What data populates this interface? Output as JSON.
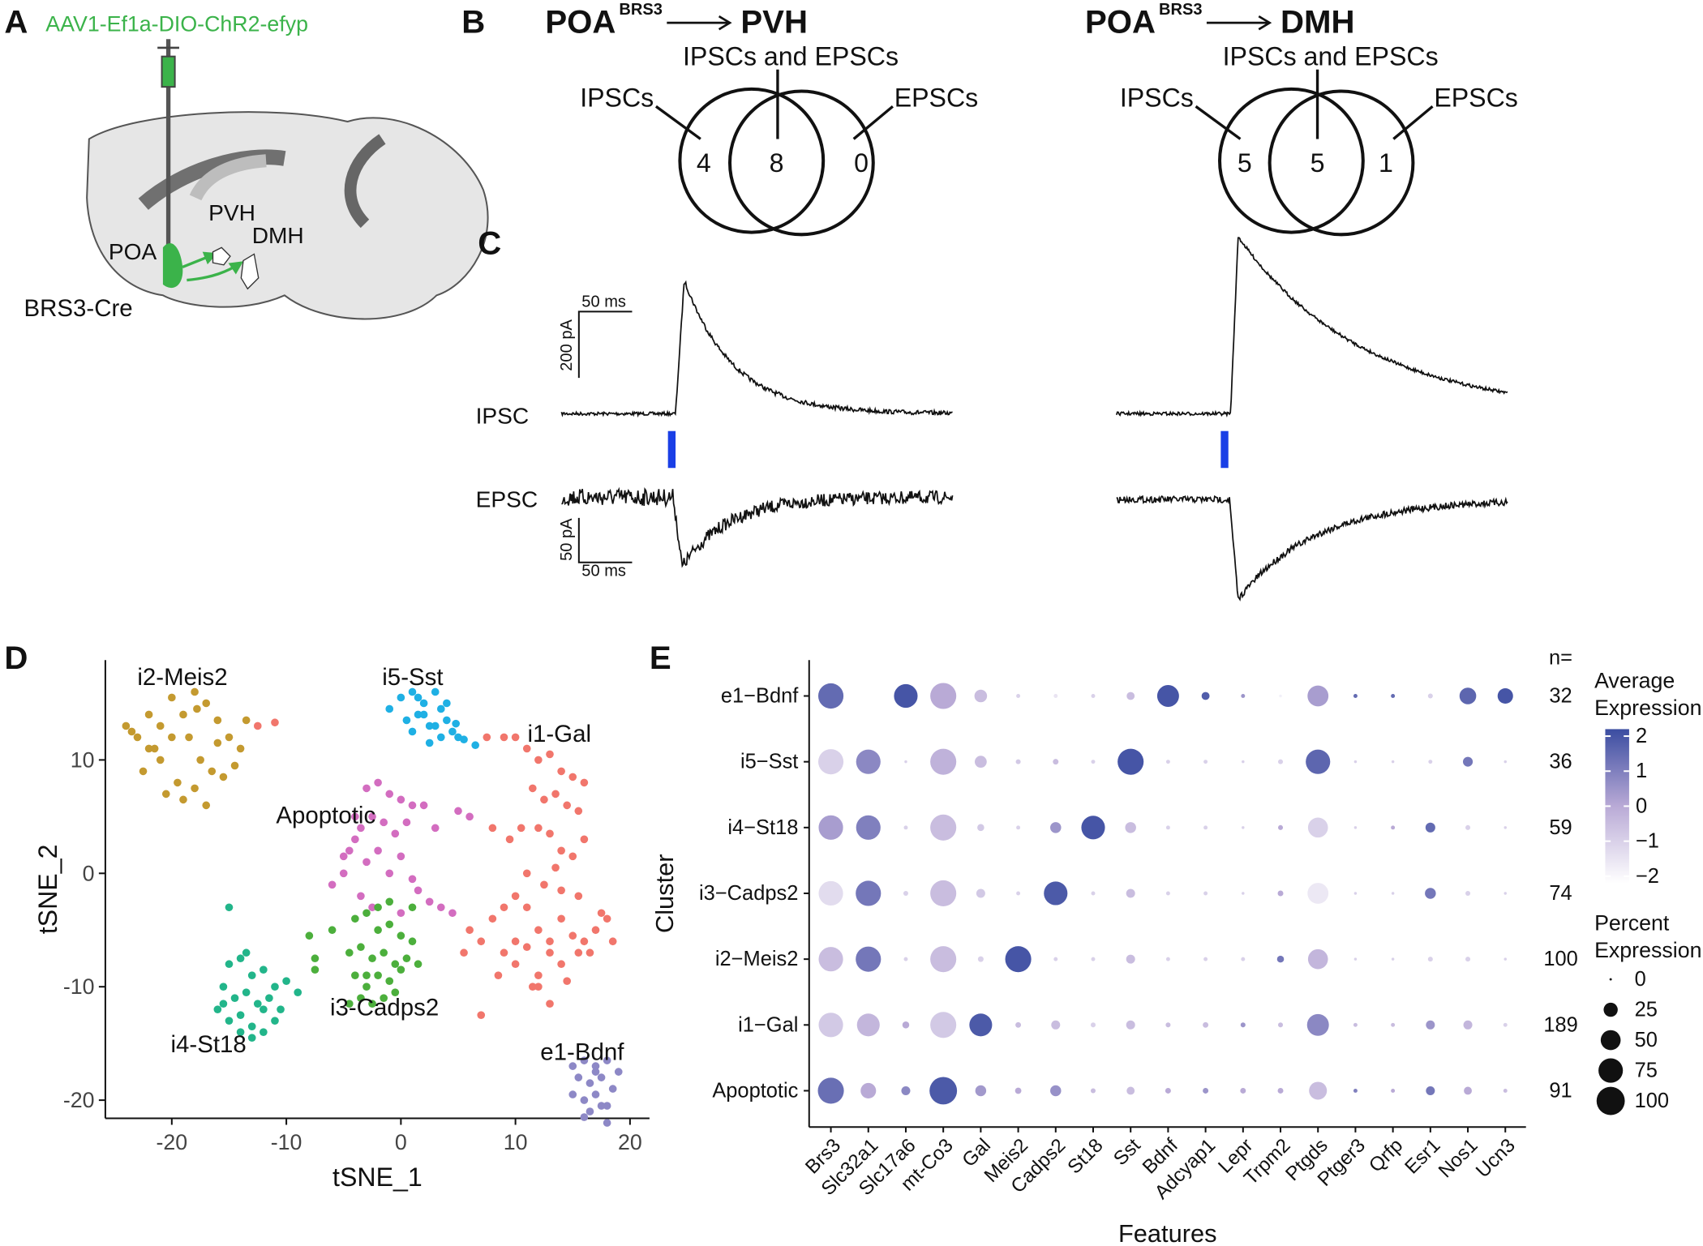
{
  "panel_a": {
    "letter": "A",
    "virus": "AAV1-Ef1a-DIO-ChR2-efyp",
    "pvh": "PVH",
    "dmh": "DMH",
    "poa": "POA",
    "mouse": "BRS3-Cre"
  },
  "panel_b": {
    "letter": "B",
    "pathways": [
      {
        "source": "POA",
        "superscript": "BRS3",
        "target": "PVH",
        "ipsc_label": "IPSCs",
        "both_label": "IPSCs and EPSCs",
        "epsc_label": "EPSCs",
        "counts": [
          4,
          8,
          0
        ]
      },
      {
        "source": "POA",
        "superscript": "BRS3",
        "target": "DMH",
        "ipsc_label": "IPSCs",
        "both_label": "IPSCs and EPSCs",
        "epsc_label": "EPSCs",
        "counts": [
          5,
          5,
          1
        ]
      }
    ]
  },
  "panel_c": {
    "letter": "C",
    "ipsc_label": "IPSC",
    "epsc_label": "EPSC",
    "ipsc_scale": {
      "time": "50 ms",
      "current": "200 pA"
    },
    "epsc_scale": {
      "current": "50 pA",
      "time": "50 ms"
    }
  },
  "chart_data": [
    {
      "type": "scatter",
      "panel": "D",
      "x_label": "tSNE_1",
      "y_label": "tSNE_2",
      "xlim": [
        -25.8,
        21.7
      ],
      "ylim": [
        -21.6,
        18.8
      ],
      "xticks": [
        -20,
        -10,
        0,
        10,
        20
      ],
      "yticks": [
        -20,
        -10,
        0,
        10
      ],
      "series": [
        {
          "name": "i2-Meis2",
          "color": "#c49a30",
          "x": [
            -24,
            -23,
            -22,
            -21.5,
            -20,
            -19,
            -18,
            -17,
            -16,
            -15,
            -14,
            -13.5,
            -22.5,
            -21,
            -19.5,
            -18.5,
            -17.5,
            -16.5,
            -15.5,
            -20.5,
            -19,
            -17,
            -22,
            -18,
            -16,
            -14.5,
            -21,
            -20,
            -23.5,
            -17.8
          ],
          "values": [
            13,
            12,
            14,
            11,
            15.5,
            14,
            16,
            15,
            13.5,
            12,
            11,
            13.5,
            9,
            10,
            8,
            12,
            10,
            9,
            8.5,
            7,
            6.5,
            6,
            11,
            7.5,
            11.5,
            9.5,
            13,
            12,
            12.5,
            14.5
          ]
        },
        {
          "name": "i5-Sst",
          "color": "#1fb0e4",
          "x": [
            -1,
            0,
            1,
            1.5,
            2,
            2.5,
            3,
            3.5,
            4,
            4.5,
            5,
            0.5,
            1,
            2,
            3,
            4,
            2.5,
            3.5,
            1.5,
            5.5,
            6.5,
            4.8
          ],
          "values": [
            14.5,
            15.5,
            16,
            14,
            15,
            13,
            16,
            14.5,
            13.5,
            12.5,
            12,
            13.5,
            12.5,
            14,
            13,
            15,
            11.5,
            12,
            15.5,
            11.8,
            11.3,
            13.2
          ]
        },
        {
          "name": "i1-Gal",
          "color": "#f1766c",
          "x": [
            -11,
            -12.5,
            7.5,
            9,
            10,
            11,
            12,
            13,
            14,
            15,
            16,
            11.5,
            12.5,
            13.5,
            14.5,
            15.5,
            10.5,
            12,
            13,
            14,
            15,
            16,
            11,
            12.5,
            13.5,
            14,
            15.5,
            8,
            9.5,
            10,
            11,
            12,
            13,
            14,
            9,
            8.5,
            10,
            11.5,
            13,
            14.5,
            15.5,
            6,
            5.5,
            7,
            8,
            9,
            10,
            11,
            12,
            13,
            14,
            16,
            17,
            18,
            18.5,
            17.5,
            16.5,
            15,
            12,
            7
          ],
          "values": [
            13.3,
            13,
            12,
            12,
            12,
            11,
            10,
            10.5,
            9,
            8.5,
            8,
            7.5,
            6.5,
            7,
            6,
            5.5,
            4,
            4,
            3.5,
            2,
            1.5,
            3,
            0,
            -1,
            0.5,
            -1.5,
            -2,
            4,
            3,
            -2,
            -3,
            -5,
            -6,
            -4,
            -7,
            -9,
            -8,
            -10,
            -11.5,
            -9.5,
            -7,
            -5,
            -7,
            -6,
            -4,
            -3,
            -6,
            -6.5,
            -9,
            -7,
            -8,
            -6,
            -5,
            -4,
            -6,
            -3.5,
            -7,
            -5.5,
            -10,
            -12.5
          ]
        },
        {
          "name": "Apoptotic",
          "color": "#d36dc0",
          "x": [
            -3,
            -2,
            -1,
            0,
            1,
            2,
            -4,
            -3.5,
            -2.5,
            -1.5,
            -0.5,
            0.5,
            -5,
            -4.5,
            -3,
            -2,
            -1,
            0,
            1,
            -6,
            -5,
            -3.5,
            2.5,
            3.5,
            4.5,
            5,
            6,
            3,
            -2.5,
            0,
            1.5,
            -4
          ],
          "values": [
            7.5,
            8,
            7,
            6.5,
            6,
            6,
            5,
            4,
            5,
            4.5,
            3.5,
            4.5,
            1.5,
            2,
            1,
            2,
            0,
            1.5,
            -0.5,
            -1,
            0,
            -2,
            -2.5,
            -3,
            -3.5,
            5.5,
            5,
            4,
            -3,
            -3.5,
            -1.5,
            3
          ]
        },
        {
          "name": "i3-Cadps2",
          "color": "#4caf3c",
          "x": [
            -4,
            -3,
            -2,
            -1,
            0,
            1,
            -4.5,
            -3.5,
            -2.5,
            -1.5,
            -0.5,
            0.5,
            1.5,
            -4,
            -3,
            -2,
            -1,
            0,
            -3.5,
            -2.5,
            -1.5,
            -0.5,
            -4.5,
            -2,
            -1,
            -8,
            -7.5,
            -7.5,
            -6,
            -3,
            1
          ],
          "values": [
            -4,
            -3.5,
            -5,
            -4.5,
            -5.5,
            -6,
            -7,
            -6.5,
            -7.5,
            -7,
            -8,
            -7.5,
            -8,
            -9,
            -10,
            -9,
            -9.5,
            -8.5,
            -11,
            -11.5,
            -11,
            -10.5,
            -11.5,
            -3,
            -2.5,
            -5.5,
            -7.5,
            -8.5,
            -5,
            -9,
            -3
          ]
        },
        {
          "name": "i4-St18",
          "color": "#22b58a",
          "x": [
            -15,
            -14,
            -13,
            -12,
            -11,
            -10,
            -9,
            -15.5,
            -14.5,
            -13.5,
            -12.5,
            -11.5,
            -10.5,
            -16,
            -15,
            -14,
            -13,
            -12,
            -11,
            -14,
            -13,
            -12,
            -15.5,
            -13.5,
            -15
          ],
          "values": [
            -8,
            -7.5,
            -9,
            -8.5,
            -10,
            -9.5,
            -10.5,
            -10,
            -11,
            -10.5,
            -11.5,
            -11,
            -12,
            -12,
            -13,
            -12.5,
            -13.5,
            -12,
            -13,
            -14,
            -14.5,
            -14,
            -11.5,
            -7,
            -3
          ]
        },
        {
          "name": "e1-Bdnf",
          "color": "#8d88c6",
          "x": [
            15,
            16,
            17,
            18,
            19,
            15.5,
            16.5,
            17.5,
            18.5,
            15,
            16,
            17,
            18,
            16.5,
            17.5,
            18,
            16,
            17
          ],
          "values": [
            -17,
            -16.5,
            -17,
            -16.5,
            -17.5,
            -18,
            -18.5,
            -18,
            -19,
            -19.5,
            -20,
            -19.5,
            -20.5,
            -21,
            -20.5,
            -22,
            -21.5,
            -17.5
          ]
        }
      ]
    },
    {
      "type": "dotplot",
      "panel": "E",
      "x_label": "Features",
      "y_label": "Cluster",
      "features": [
        "Brs3",
        "Slc32a1",
        "Slc17a6",
        "mt-Co3",
        "Gal",
        "Meis2",
        "Cadps2",
        "St18",
        "Sst",
        "Bdnf",
        "Adcyap1",
        "Lepr",
        "Trpm2",
        "Ptgds",
        "Ptger3",
        "Qrfp",
        "Esr1",
        "Nos1",
        "Ucn3"
      ],
      "clusters": [
        "e1−Bdnf",
        "i5−Sst",
        "i4−St18",
        "i3−Cadps2",
        "i2−Meis2",
        "i1−Gal",
        "Apoptotic"
      ],
      "expression": [
        [
          1.5,
          null,
          2,
          0,
          -0.5,
          -1,
          -1.5,
          -1,
          -0.5,
          2,
          1.8,
          0.5,
          -1.8,
          0.3,
          1.5,
          1.5,
          -1,
          1.6,
          2
        ],
        [
          -1,
          0.8,
          -1,
          -0.2,
          -0.5,
          -0.8,
          -0.5,
          -1,
          2,
          -1,
          -1,
          -1,
          -1,
          1.6,
          -1,
          -1,
          -1,
          1.2,
          -1
        ],
        [
          0.3,
          1,
          -1,
          -0.5,
          -0.8,
          -1,
          0.5,
          2,
          -0.5,
          -1,
          -1,
          -1,
          0,
          -1,
          -1,
          0,
          1.5,
          -1,
          -1
        ],
        [
          -1.3,
          1.2,
          -1,
          -0.5,
          -0.8,
          -1,
          1.9,
          -1,
          -0.5,
          -1,
          -1,
          -1,
          0,
          -1.6,
          -1,
          -1,
          1.2,
          -1,
          -1
        ],
        [
          -0.5,
          1.2,
          -1,
          -0.5,
          -1,
          2,
          -1,
          -1,
          -0.5,
          -1,
          -1,
          -1,
          1.2,
          -0.3,
          -1,
          -1,
          -1,
          -1,
          -1
        ],
        [
          -0.8,
          -0.3,
          0,
          -0.8,
          1.9,
          -0.5,
          -0.5,
          -1,
          -0.5,
          -0.5,
          -0.5,
          0.5,
          -0.5,
          0.8,
          -0.5,
          -0.5,
          0.5,
          -0.3,
          -1
        ],
        [
          1.4,
          0,
          0.8,
          1.9,
          0.4,
          0,
          0.6,
          -0.5,
          -0.5,
          0,
          0.5,
          0,
          0,
          -0.5,
          1,
          0,
          1.2,
          0,
          -0.5
        ]
      ],
      "percent": [
        [
          80,
          null,
          70,
          85,
          20,
          2,
          2,
          2,
          8,
          60,
          8,
          2,
          1,
          55,
          2,
          2,
          3,
          35,
          30
        ],
        [
          80,
          75,
          1,
          85,
          18,
          3,
          4,
          2,
          85,
          2,
          2,
          1,
          3,
          75,
          1,
          1,
          2,
          12,
          1
        ],
        [
          75,
          75,
          2,
          85,
          6,
          2,
          15,
          70,
          15,
          2,
          2,
          1,
          3,
          50,
          1,
          2,
          12,
          3,
          1
        ],
        [
          75,
          80,
          3,
          85,
          10,
          2,
          70,
          2,
          10,
          2,
          2,
          1,
          4,
          55,
          1,
          1,
          15,
          3,
          1
        ],
        [
          75,
          80,
          2,
          85,
          4,
          85,
          2,
          2,
          10,
          2,
          2,
          2,
          6,
          50,
          1,
          1,
          3,
          3,
          1
        ],
        [
          75,
          65,
          6,
          85,
          65,
          4,
          10,
          3,
          10,
          3,
          4,
          3,
          3,
          60,
          2,
          2,
          10,
          10,
          2
        ],
        [
          85,
          30,
          10,
          95,
          15,
          5,
          15,
          3,
          8,
          4,
          4,
          4,
          4,
          40,
          2,
          2,
          10,
          8,
          2
        ]
      ],
      "n_label": "n=",
      "n": [
        32,
        36,
        59,
        74,
        100,
        189,
        91
      ],
      "color_title": [
        "Average",
        "Expression"
      ],
      "clim": [
        -2.2,
        2.2
      ],
      "color_low": "#ffffff",
      "color_mid": "#b9aad6",
      "color_high": "#3b4da1",
      "colorbar_ticks": [
        2,
        1,
        0,
        {
          "value": -1,
          "label": "−1"
        },
        {
          "value": -2,
          "label": "−2"
        }
      ],
      "size_title": [
        "Percent",
        "Expression"
      ],
      "size_ticks": [
        0,
        25,
        50,
        75,
        100
      ]
    }
  ]
}
